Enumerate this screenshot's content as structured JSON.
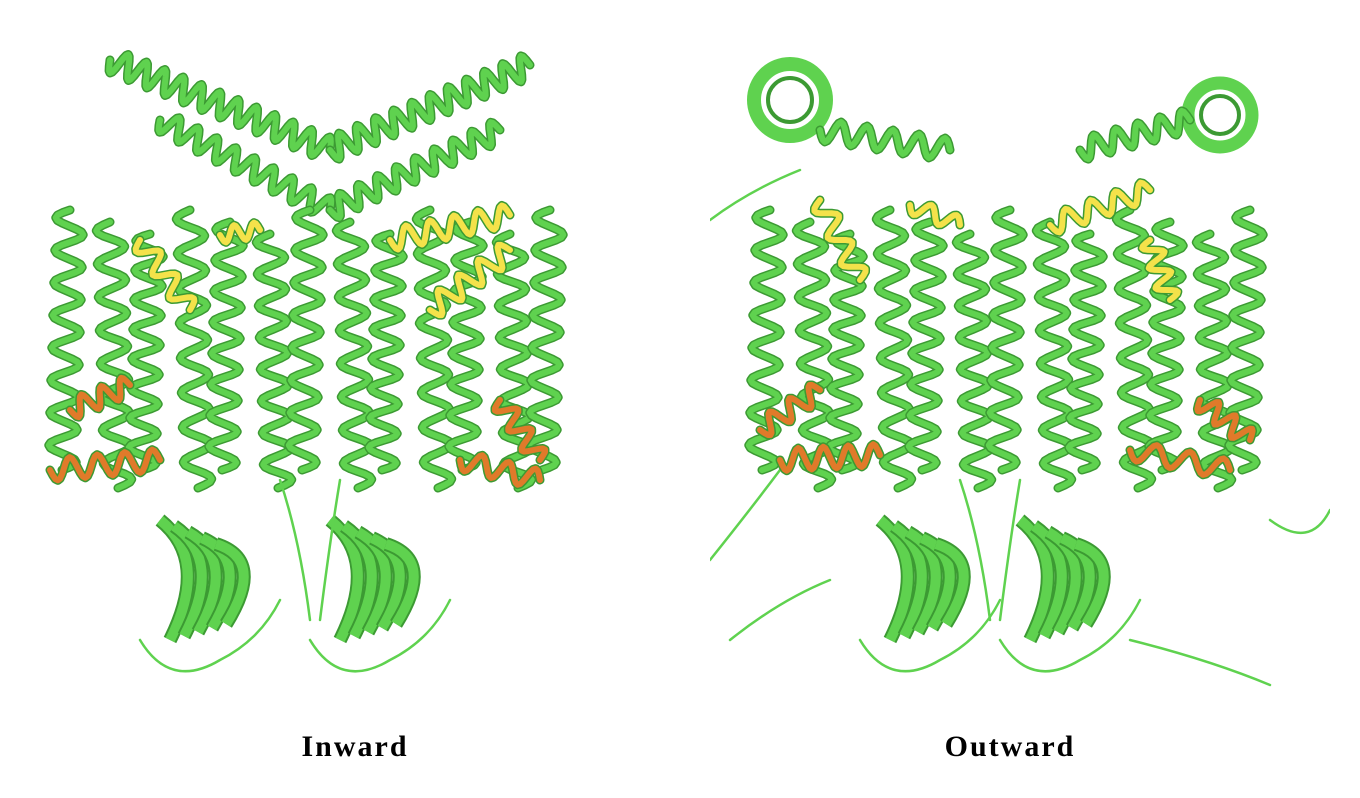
{
  "colors": {
    "helix_main": "#5fd24f",
    "helix_dark": "#3c9a33",
    "helix_highlight": "#f4e24a",
    "helix_accent": "#e07a2a",
    "background": "#ffffff"
  },
  "panels": [
    {
      "label": "Inward"
    },
    {
      "label": "Outward"
    }
  ]
}
